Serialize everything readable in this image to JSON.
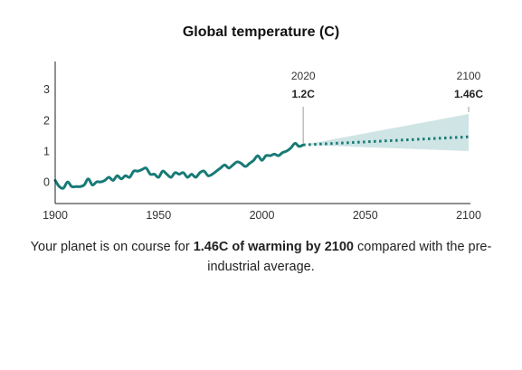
{
  "chart_data": {
    "type": "line",
    "title": "Global temperature (C)",
    "xlim": [
      1900,
      2100
    ],
    "ylim": [
      -0.7,
      3.9
    ],
    "x_ticks": [
      1900,
      1950,
      2000,
      2050,
      2100
    ],
    "y_ticks": [
      0,
      1,
      2,
      3
    ],
    "series": [
      {
        "role": "observed",
        "style": "solid",
        "color": "#187a76",
        "x": [
          1900,
          1902,
          1904,
          1906,
          1908,
          1910,
          1912,
          1914,
          1916,
          1918,
          1920,
          1922,
          1924,
          1926,
          1928,
          1930,
          1932,
          1934,
          1936,
          1938,
          1940,
          1942,
          1944,
          1946,
          1948,
          1950,
          1952,
          1954,
          1956,
          1958,
          1960,
          1962,
          1964,
          1966,
          1968,
          1970,
          1972,
          1974,
          1976,
          1978,
          1980,
          1982,
          1984,
          1986,
          1988,
          1990,
          1992,
          1994,
          1996,
          1998,
          2000,
          2002,
          2004,
          2006,
          2008,
          2010,
          2012,
          2014,
          2016,
          2018,
          2020
        ],
        "y": [
          0.05,
          -0.15,
          -0.2,
          0.0,
          -0.15,
          -0.15,
          -0.15,
          -0.1,
          0.1,
          -0.1,
          0.0,
          0.0,
          0.05,
          0.15,
          0.05,
          0.2,
          0.1,
          0.2,
          0.15,
          0.35,
          0.35,
          0.4,
          0.45,
          0.25,
          0.25,
          0.15,
          0.35,
          0.25,
          0.15,
          0.3,
          0.25,
          0.3,
          0.15,
          0.25,
          0.15,
          0.3,
          0.35,
          0.2,
          0.25,
          0.35,
          0.45,
          0.55,
          0.45,
          0.55,
          0.65,
          0.6,
          0.5,
          0.6,
          0.7,
          0.85,
          0.7,
          0.85,
          0.85,
          0.9,
          0.85,
          0.95,
          1.0,
          1.1,
          1.25,
          1.15,
          1.2
        ]
      },
      {
        "role": "projection",
        "style": "dotted",
        "color": "#187a76",
        "x": [
          2020,
          2100
        ],
        "y": [
          1.2,
          1.46
        ]
      }
    ],
    "band": {
      "color": "#cfe4e5",
      "x": [
        2020,
        2100
      ],
      "upper": [
        1.2,
        2.2
      ],
      "lower": [
        1.2,
        1.0
      ]
    },
    "annotations": [
      {
        "x": 2020,
        "year": "2020",
        "value": "1.2C"
      },
      {
        "x": 2100,
        "year": "2100",
        "value": "1.46C"
      }
    ]
  },
  "caption": {
    "prefix": "Your planet is on course for ",
    "highlight": "1.46C of warming by 2100",
    "suffix": " compared with the pre-industrial average."
  }
}
